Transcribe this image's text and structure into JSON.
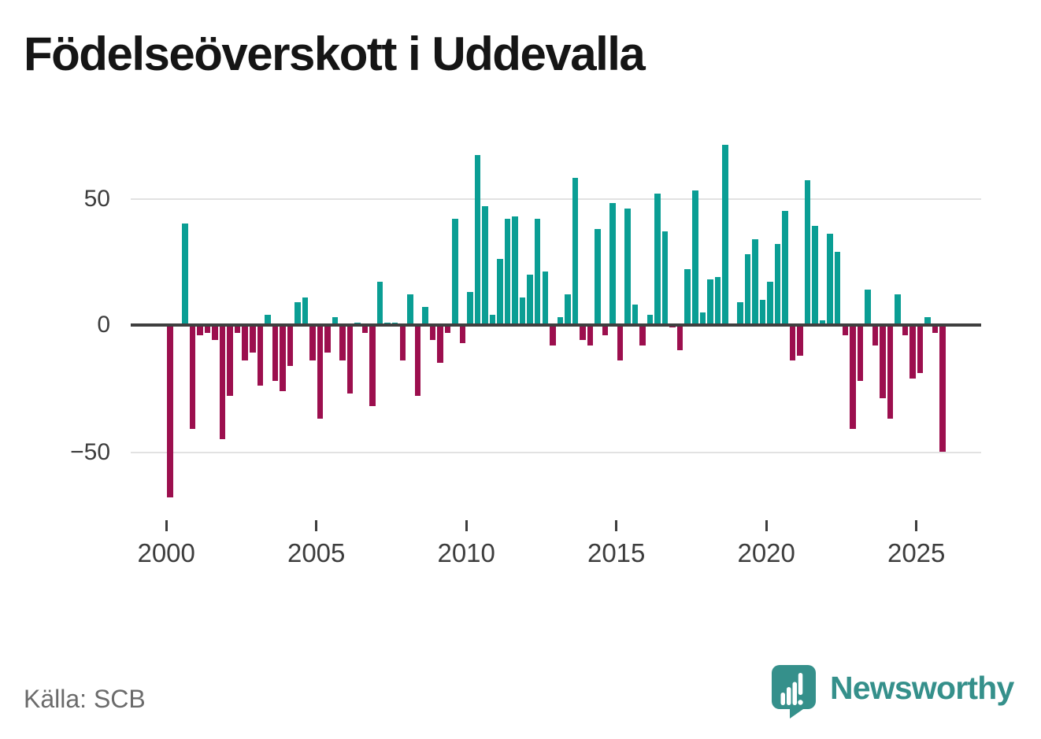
{
  "title": "Födelseöverskott i Uddevalla",
  "source": "Källa: SCB",
  "branding": {
    "wordmark": "Newsworthy",
    "logo_icon": "newsworthy-speech-bubble-bar-chart-icon"
  },
  "colors": {
    "positive": "#0a9e94",
    "negative": "#9c0f4e",
    "axis": "#3f3f3f",
    "gridline": "#e2e2e2",
    "tick_text": "#3d3d3d",
    "title_text": "#151515",
    "source_text": "#6b6b6b",
    "brand": "#35908b"
  },
  "chart_data": {
    "type": "bar",
    "title": "Födelseöverskott i Uddevalla",
    "frequency": "quarterly",
    "categories": [
      "2000 Q1",
      "2000 Q2",
      "2000 Q3",
      "2000 Q4",
      "2001 Q1",
      "2001 Q2",
      "2001 Q3",
      "2001 Q4",
      "2002 Q1",
      "2002 Q2",
      "2002 Q3",
      "2002 Q4",
      "2003 Q1",
      "2003 Q2",
      "2003 Q3",
      "2003 Q4",
      "2004 Q1",
      "2004 Q2",
      "2004 Q3",
      "2004 Q4",
      "2005 Q1",
      "2005 Q2",
      "2005 Q3",
      "2005 Q4",
      "2006 Q1",
      "2006 Q2",
      "2006 Q3",
      "2006 Q4",
      "2007 Q1",
      "2007 Q2",
      "2007 Q3",
      "2007 Q4",
      "2008 Q1",
      "2008 Q2",
      "2008 Q3",
      "2008 Q4",
      "2009 Q1",
      "2009 Q2",
      "2009 Q3",
      "2009 Q4",
      "2010 Q1",
      "2010 Q2",
      "2010 Q3",
      "2010 Q4",
      "2011 Q1",
      "2011 Q2",
      "2011 Q3",
      "2011 Q4",
      "2012 Q1",
      "2012 Q2",
      "2012 Q3",
      "2012 Q4",
      "2013 Q1",
      "2013 Q2",
      "2013 Q3",
      "2013 Q4",
      "2014 Q1",
      "2014 Q2",
      "2014 Q3",
      "2014 Q4",
      "2015 Q1",
      "2015 Q2",
      "2015 Q3",
      "2015 Q4",
      "2016 Q1",
      "2016 Q2",
      "2016 Q3",
      "2016 Q4",
      "2017 Q1",
      "2017 Q2",
      "2017 Q3",
      "2017 Q4",
      "2018 Q1",
      "2018 Q2",
      "2018 Q3",
      "2018 Q4",
      "2019 Q1",
      "2019 Q2",
      "2019 Q3",
      "2019 Q4",
      "2020 Q1",
      "2020 Q2",
      "2020 Q3",
      "2020 Q4",
      "2021 Q1",
      "2021 Q2",
      "2021 Q3",
      "2021 Q4",
      "2022 Q1",
      "2022 Q2",
      "2022 Q3",
      "2022 Q4",
      "2023 Q1",
      "2023 Q2",
      "2023 Q3",
      "2023 Q4",
      "2024 Q1",
      "2024 Q2",
      "2024 Q3",
      "2024 Q4",
      "2025 Q1",
      "2025 Q2",
      "2025 Q3",
      "2025 Q4"
    ],
    "values": [
      -68,
      0,
      40,
      -41,
      -4,
      -3,
      -6,
      -45,
      -28,
      -3,
      -14,
      -11,
      -24,
      4,
      -22,
      -26,
      -16,
      9,
      11,
      -14,
      -37,
      -11,
      3,
      -14,
      -27,
      1,
      -3,
      -32,
      17,
      1,
      1,
      -14,
      12,
      -28,
      7,
      -6,
      -15,
      -3,
      42,
      -7,
      13,
      67,
      47,
      4,
      26,
      42,
      43,
      11,
      20,
      42,
      21,
      -8,
      3,
      12,
      58,
      -6,
      -8,
      38,
      -4,
      48,
      -14,
      46,
      8,
      -8,
      4,
      52,
      37,
      -1,
      -10,
      22,
      53,
      5,
      18,
      19,
      71,
      0,
      9,
      28,
      34,
      10,
      17,
      32,
      45,
      -14,
      -12,
      57,
      39,
      2,
      36,
      29,
      -4,
      -41,
      -22,
      14,
      -8,
      -29,
      -37,
      12,
      -4,
      -21,
      -19,
      3,
      -3,
      -50
    ],
    "yticks": [
      {
        "value": 50,
        "label": "50"
      },
      {
        "value": 0,
        "label": "0"
      },
      {
        "value": -50,
        "label": "−50"
      }
    ],
    "xticks": [
      {
        "value": 2000,
        "label": "2000"
      },
      {
        "value": 2005,
        "label": "2005"
      },
      {
        "value": 2010,
        "label": "2010"
      },
      {
        "value": 2015,
        "label": "2015"
      },
      {
        "value": 2020,
        "label": "2020"
      },
      {
        "value": 2025,
        "label": "2025"
      }
    ],
    "gridlines": [
      50,
      -50
    ],
    "ylim": [
      -75,
      78
    ],
    "legend": "none",
    "grid": "horizontal-only"
  }
}
